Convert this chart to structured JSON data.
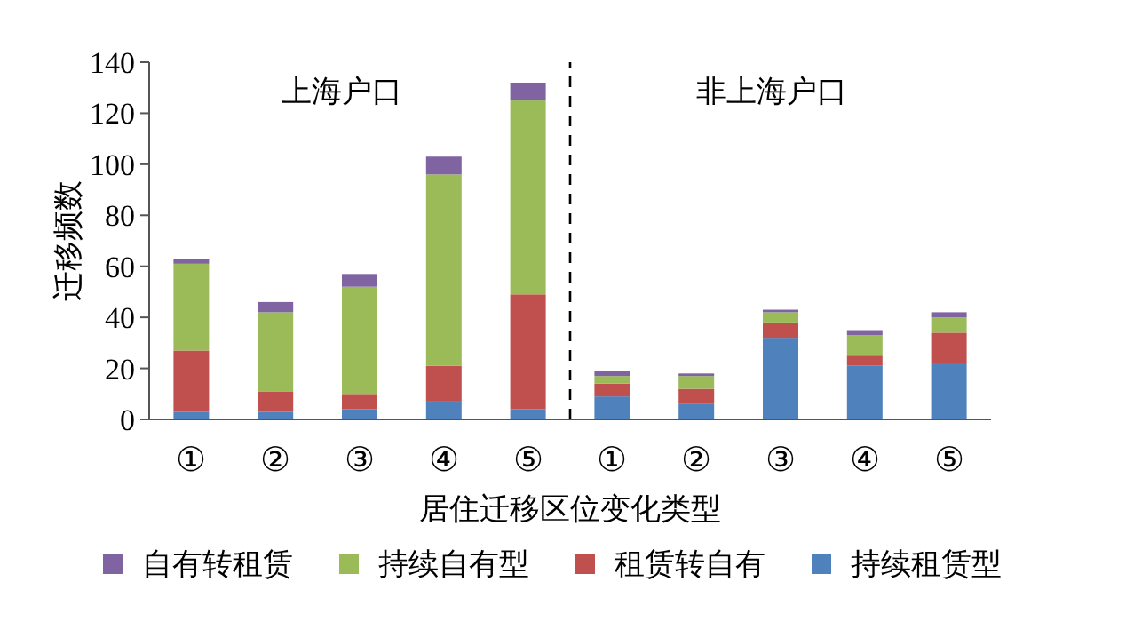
{
  "chart_data": [
    {
      "type": "bar",
      "stacked": true,
      "title": "上海户口",
      "ylabel": "迁移频数",
      "xlabel": "居住迁移区位变化类型",
      "categories": [
        "①",
        "②",
        "③",
        "④",
        "⑤"
      ],
      "ylim": [
        0,
        140
      ],
      "yticks": [
        0,
        20,
        40,
        60,
        80,
        100,
        120,
        140
      ],
      "series": [
        {
          "name": "持续租赁型",
          "color": "#4f81bd",
          "values": [
            3,
            3,
            4,
            7,
            4
          ]
        },
        {
          "name": "租赁转自有",
          "color": "#c0504d",
          "values": [
            24,
            8,
            6,
            14,
            45
          ]
        },
        {
          "name": "持续自有型",
          "color": "#9bbb59",
          "values": [
            34,
            31,
            42,
            75,
            76
          ]
        },
        {
          "name": "自有转租赁",
          "color": "#8064a2",
          "values": [
            2,
            4,
            5,
            7,
            7
          ]
        }
      ],
      "legend": "bottom"
    },
    {
      "type": "bar",
      "stacked": true,
      "title": "非上海户口",
      "categories": [
        "①",
        "②",
        "③",
        "④",
        "⑤"
      ],
      "ylim": [
        0,
        140
      ],
      "tick_labels": "x",
      "series": [
        {
          "color": "#4f81bd",
          "values": [
            9,
            6,
            32,
            21,
            22
          ]
        },
        {
          "color": "#c0504d",
          "values": [
            5,
            6,
            6,
            4,
            12
          ]
        },
        {
          "color": "#9bbb59",
          "values": [
            3,
            5,
            4,
            8,
            6
          ]
        },
        {
          "color": "#8064a2",
          "values": [
            2,
            1,
            1,
            2,
            2
          ]
        }
      ]
    }
  ]
}
